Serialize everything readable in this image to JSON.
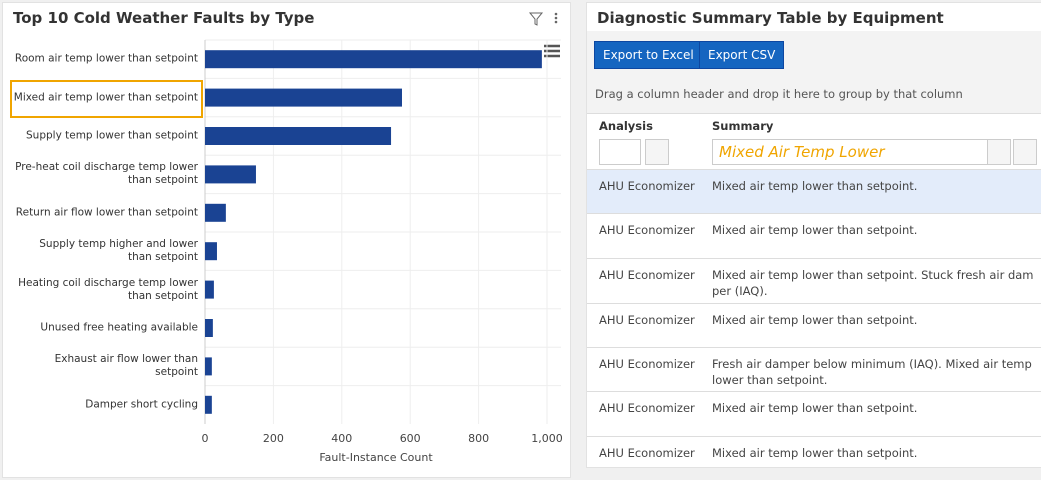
{
  "chart_panel": {
    "type": "bar",
    "orientation": "horizontal",
    "title": "Top 10 Cold Weather Faults by Type",
    "categories": [
      "Room air temp lower than setpoint",
      "Mixed air temp lower than setpoint",
      "Supply temp lower than setpoint",
      "Pre-heat coil discharge temp lower than setpoint",
      "Return air flow lower than setpoint",
      "Supply temp higher and lower than setpoint",
      "Heating coil discharge temp lower than setpoint",
      "Unused free heating available",
      "Exhaust air flow lower than setpoint",
      "Damper short cycling"
    ],
    "values": [
      985,
      576,
      544,
      149,
      61,
      35,
      26,
      23,
      20,
      20
    ],
    "color": "#1a4393",
    "xlabel": "Fault-Instance Count",
    "xlim": [
      0,
      1000
    ],
    "xticks": [
      0,
      200,
      400,
      600,
      800,
      {
        "value": 1000,
        "label": "1,000"
      }
    ],
    "grid": true
  },
  "table_panel": {
    "title": "Diagnostic Summary Table by Equipment",
    "buttons": [
      "Export to Excel",
      "Export CSV"
    ],
    "group_hint": "Drag a column header and drop it here to group by that column",
    "columns": [
      "Analysis",
      "Summary"
    ],
    "summary_filter": "Mixed Air Temp Lower",
    "rows": [
      [
        "AHU Economizer",
        "Mixed air temp lower than setpoint."
      ],
      [
        "AHU Economizer",
        "Mixed air temp lower than setpoint."
      ],
      [
        "AHU Economizer",
        "Mixed air temp lower than setpoint. Stuck fresh air damper (IAQ)."
      ],
      [
        "AHU Economizer",
        "Mixed air temp lower than setpoint."
      ],
      [
        "AHU Economizer",
        "Fresh air damper below minimum (IAQ). Mixed air temp lower than setpoint."
      ],
      [
        "AHU Economizer",
        "Mixed air temp lower than setpoint."
      ],
      [
        "AHU Economizer",
        "Mixed air temp lower than setpoint."
      ]
    ]
  }
}
